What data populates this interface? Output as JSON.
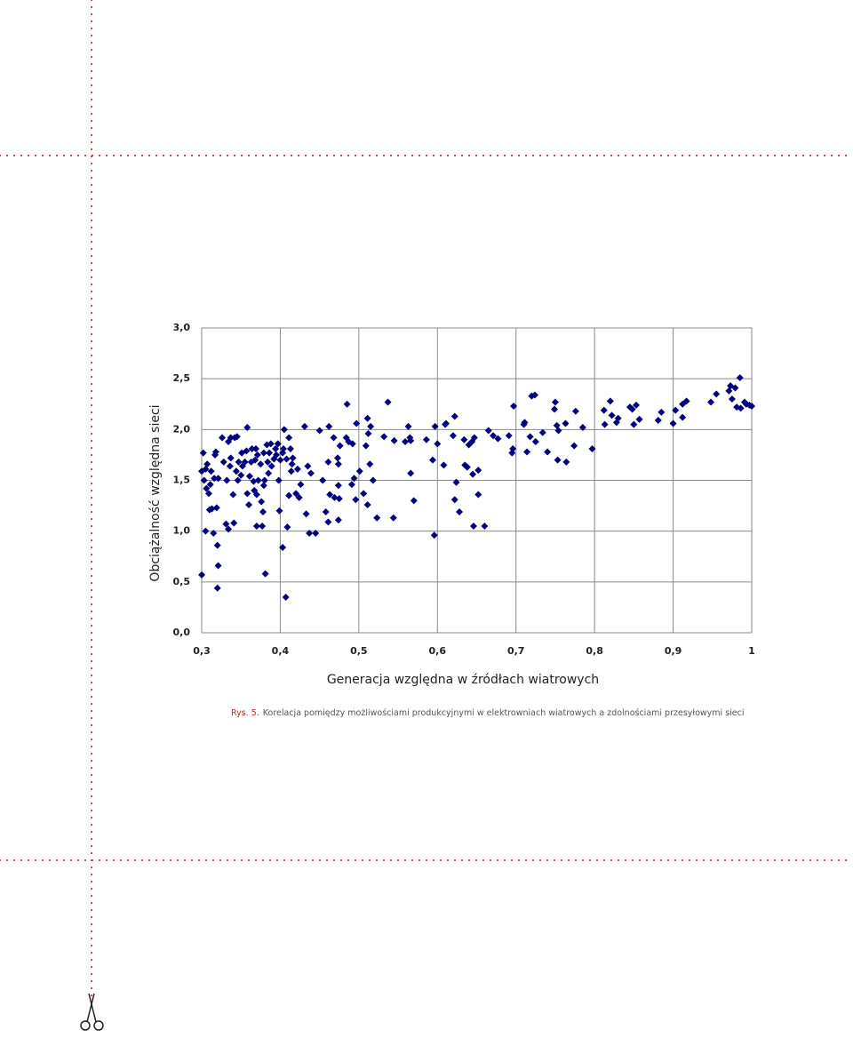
{
  "chart_data": {
    "type": "scatter",
    "y_label": "Obciążalność względna sieci",
    "x_label": "Generacja względna w źródłach wiatrowych",
    "caption_label": "Rys. 5.",
    "caption": "Korelacja pomiędzy możliwościami produkcyjnymi w elektrowniach wiatrowych a zdolnościami przesyłowymi sieci",
    "color": "#00007f",
    "grid": true,
    "xlim": [
      0.3,
      1
    ],
    "ylim": [
      0,
      3
    ],
    "xticks": [
      {
        "value": 0.3,
        "label": "0,3"
      },
      {
        "value": 0.4,
        "label": "0,4"
      },
      {
        "value": 0.5,
        "label": "0,5"
      },
      {
        "value": 0.6,
        "label": "0,6"
      },
      {
        "value": 0.7,
        "label": "0,7"
      },
      {
        "value": 0.8,
        "label": "0,8"
      },
      {
        "value": 0.9,
        "label": "0,9"
      },
      1
    ],
    "yticks": [
      {
        "value": 0,
        "label": "0,0"
      },
      {
        "value": 0.5,
        "label": "0,5"
      },
      {
        "value": 1,
        "label": "1,0"
      },
      {
        "value": 1.5,
        "label": "1,5"
      },
      {
        "value": 2,
        "label": "2,0"
      },
      {
        "value": 2.5,
        "label": "2,5"
      },
      {
        "value": 3,
        "label": "3,0"
      }
    ],
    "x": [
      0.3,
      0.302,
      0.3,
      0.303,
      0.305,
      0.305,
      0.306,
      0.307,
      0.309,
      0.31,
      0.311,
      0.312,
      0.313,
      0.315,
      0.316,
      0.317,
      0.318,
      0.319,
      0.32,
      0.321,
      0.32,
      0.321,
      0.326,
      0.328,
      0.331,
      0.332,
      0.334,
      0.336,
      0.337,
      0.334,
      0.337,
      0.34,
      0.341,
      0.342,
      0.344,
      0.345,
      0.346,
      0.347,
      0.35,
      0.351,
      0.352,
      0.355,
      0.357,
      0.358,
      0.358,
      0.36,
      0.361,
      0.363,
      0.364,
      0.366,
      0.367,
      0.368,
      0.369,
      0.37,
      0.37,
      0.371,
      0.372,
      0.375,
      0.376,
      0.377,
      0.378,
      0.379,
      0.379,
      0.38,
      0.381,
      0.383,
      0.384,
      0.385,
      0.386,
      0.388,
      0.389,
      0.392,
      0.394,
      0.395,
      0.397,
      0.398,
      0.399,
      0.4,
      0.403,
      0.403,
      0.404,
      0.405,
      0.407,
      0.408,
      0.409,
      0.411,
      0.411,
      0.413,
      0.414,
      0.415,
      0.416,
      0.42,
      0.422,
      0.424,
      0.426,
      0.431,
      0.433,
      0.435,
      0.437,
      0.439,
      0.445,
      0.45,
      0.454,
      0.458,
      0.461,
      0.461,
      0.462,
      0.463,
      0.468,
      0.469,
      0.473,
      0.474,
      0.474,
      0.474,
      0.475,
      0.476,
      0.484,
      0.485,
      0.487,
      0.491,
      0.492,
      0.494,
      0.496,
      0.497,
      0.501,
      0.506,
      0.509,
      0.511,
      0.511,
      0.512,
      0.514,
      0.515,
      0.518,
      0.523,
      0.532,
      0.537,
      0.544,
      0.545,
      0.559,
      0.563,
      0.565,
      0.566,
      0.566,
      0.57,
      0.586,
      0.594,
      0.596,
      0.597,
      0.6,
      0.608,
      0.61,
      0.611,
      0.62,
      0.622,
      0.622,
      0.624,
      0.628,
      0.634,
      0.635,
      0.638,
      0.64,
      0.644,
      0.645,
      0.646,
      0.647,
      0.652,
      0.652,
      0.66,
      0.665,
      0.671,
      0.677,
      0.691,
      0.695,
      0.696,
      0.697,
      0.71,
      0.711,
      0.714,
      0.718,
      0.72,
      0.724,
      0.725,
      0.734,
      0.74,
      0.749,
      0.75,
      0.752,
      0.753,
      0.754,
      0.763,
      0.764,
      0.774,
      0.776,
      0.785,
      0.797,
      0.812,
      0.813,
      0.82,
      0.822,
      0.828,
      0.83,
      0.845,
      0.848,
      0.85,
      0.853,
      0.857,
      0.881,
      0.885,
      0.9,
      0.903,
      0.912,
      0.912,
      0.917,
      0.948,
      0.955,
      0.971,
      0.973,
      0.975,
      0.979,
      0.981,
      0.985,
      0.986,
      0.991,
      0.993,
      0.997,
      1.0
    ],
    "values": [
      0.57,
      1.77,
      1.59,
      1.5,
      1.61,
      1.0,
      1.42,
      1.66,
      1.37,
      1.21,
      1.46,
      1.59,
      1.22,
      0.98,
      1.52,
      1.75,
      1.78,
      1.23,
      0.86,
      0.66,
      0.44,
      1.52,
      1.92,
      1.68,
      1.07,
      1.5,
      1.88,
      1.64,
      1.72,
      1.02,
      1.92,
      1.36,
      1.08,
      1.92,
      1.59,
      1.93,
      1.5,
      1.68,
      1.55,
      1.77,
      1.64,
      1.68,
      1.79,
      2.02,
      1.37,
      1.26,
      1.54,
      1.68,
      1.81,
      1.49,
      1.4,
      1.7,
      1.81,
      1.05,
      1.36,
      1.75,
      1.5,
      1.66,
      1.29,
      1.05,
      1.19,
      1.77,
      1.45,
      1.5,
      0.58,
      1.85,
      1.68,
      1.57,
      1.77,
      1.86,
      1.64,
      1.71,
      1.81,
      1.75,
      1.86,
      1.5,
      1.2,
      1.7,
      0.84,
      1.77,
      1.81,
      2.0,
      0.35,
      1.71,
      1.04,
      1.92,
      1.35,
      1.81,
      1.59,
      1.66,
      1.72,
      1.37,
      1.61,
      1.33,
      1.46,
      2.03,
      1.17,
      1.64,
      0.98,
      1.57,
      0.98,
      1.99,
      1.5,
      1.19,
      1.09,
      1.68,
      2.03,
      1.36,
      1.92,
      1.33,
      1.72,
      1.66,
      1.45,
      1.11,
      1.32,
      1.84,
      1.92,
      2.25,
      1.88,
      1.46,
      1.86,
      1.52,
      1.31,
      2.06,
      1.59,
      1.37,
      1.84,
      2.11,
      1.26,
      1.96,
      1.66,
      2.03,
      1.5,
      1.13,
      1.93,
      2.27,
      1.13,
      1.89,
      1.88,
      2.03,
      1.92,
      1.57,
      1.89,
      1.3,
      1.9,
      1.7,
      0.96,
      2.03,
      1.86,
      1.65,
      2.05,
      2.06,
      1.94,
      2.13,
      1.31,
      1.48,
      1.19,
      1.9,
      1.65,
      1.63,
      1.85,
      1.88,
      1.56,
      1.05,
      1.92,
      1.6,
      1.36,
      1.05,
      1.99,
      1.94,
      1.91,
      1.94,
      1.77,
      1.81,
      2.23,
      2.05,
      2.07,
      1.78,
      1.93,
      2.33,
      2.34,
      1.88,
      1.97,
      1.78,
      2.2,
      2.27,
      2.04,
      1.7,
      1.99,
      2.06,
      1.68,
      1.84,
      2.18,
      2.02,
      1.81,
      2.19,
      2.05,
      2.28,
      2.14,
      2.07,
      2.11,
      2.22,
      2.2,
      2.05,
      2.24,
      2.1,
      2.09,
      2.17,
      2.06,
      2.19,
      2.25,
      2.12,
      2.28,
      2.27,
      2.35,
      2.38,
      2.43,
      2.3,
      2.41,
      2.22,
      2.51,
      2.21,
      2.27,
      2.25,
      2.24,
      2.23
    ]
  }
}
